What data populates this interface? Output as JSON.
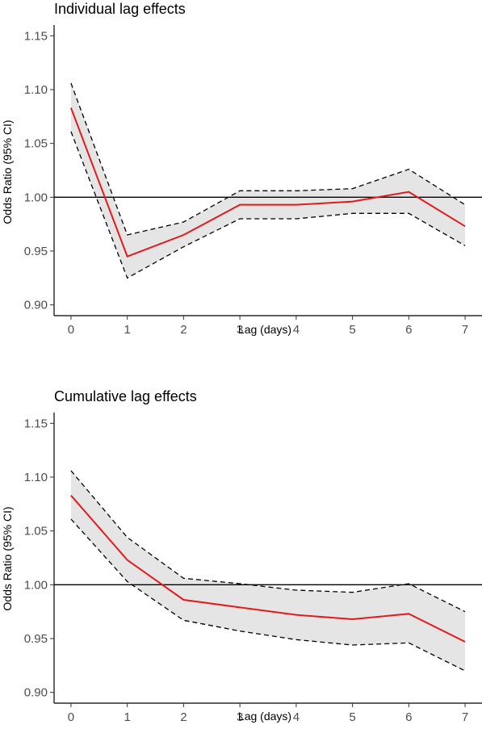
{
  "chart_data": [
    {
      "type": "line",
      "title": "Individual lag effects",
      "xlabel": "Lag (days)",
      "ylabel": "Odds Ratio (95% CI)",
      "x": [
        0,
        1,
        2,
        3,
        4,
        5,
        6,
        7
      ],
      "x_ticks": [
        "0",
        "1",
        "2",
        "3",
        "4",
        "5",
        "6",
        "7"
      ],
      "y_ticks": [
        "0.90",
        "0.95",
        "1.00",
        "1.05",
        "1.10",
        "1.15"
      ],
      "ylim": [
        0.89,
        1.16
      ],
      "xlim": [
        -0.3,
        7.3
      ],
      "reference_line": 1.0,
      "series": [
        {
          "values": [
            1.083,
            0.945,
            0.965,
            0.993,
            0.993,
            0.996,
            1.005,
            0.973
          ]
        },
        {
          "values": [
            1.061,
            0.925,
            0.954,
            0.98,
            0.98,
            0.985,
            0.985,
            0.955
          ]
        },
        {
          "values": [
            1.106,
            0.965,
            0.977,
            1.006,
            1.006,
            1.008,
            1.026,
            0.993
          ]
        }
      ],
      "colors": {
        "estimate": "#e31a1c",
        "ci": "#000000",
        "band": "#e5e5e5"
      }
    },
    {
      "type": "line",
      "title": "Cumulative lag effects",
      "xlabel": "Lag (days)",
      "ylabel": "Odds Ratio (95% CI)",
      "x": [
        0,
        1,
        2,
        3,
        4,
        5,
        6,
        7
      ],
      "x_ticks": [
        "0",
        "1",
        "2",
        "3",
        "4",
        "5",
        "6",
        "7"
      ],
      "y_ticks": [
        "0.90",
        "0.95",
        "1.00",
        "1.05",
        "1.10",
        "1.15"
      ],
      "ylim": [
        0.89,
        1.16
      ],
      "xlim": [
        -0.3,
        7.3
      ],
      "reference_line": 1.0,
      "series": [
        {
          "values": [
            1.083,
            1.023,
            0.986,
            0.979,
            0.972,
            0.968,
            0.973,
            0.947
          ]
        },
        {
          "values": [
            1.061,
            1.003,
            0.967,
            0.957,
            0.949,
            0.944,
            0.946,
            0.92
          ]
        },
        {
          "values": [
            1.106,
            1.044,
            1.006,
            1.001,
            0.995,
            0.993,
            1.001,
            0.975
          ]
        }
      ],
      "colors": {
        "estimate": "#e31a1c",
        "ci": "#000000",
        "band": "#e5e5e5"
      }
    }
  ]
}
